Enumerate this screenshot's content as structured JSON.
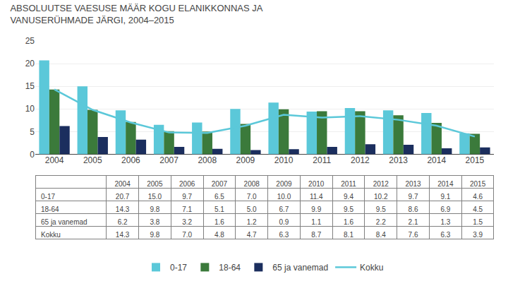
{
  "chart_data": {
    "type": "bar",
    "title": "ABSOLUUTSE VAESUSE MÄÄR KOGU ELANIKKONNAS JA\nVANUSERÜHMADE JÄRGI, 2004–2015",
    "categories": [
      "2004",
      "2005",
      "2006",
      "2007",
      "2008",
      "2009",
      "2010",
      "2011",
      "2012",
      "2013",
      "2014",
      "2015"
    ],
    "series": [
      {
        "name": "0-17",
        "type": "bar",
        "color": "#5BC8D9",
        "values": [
          20.7,
          15.0,
          9.7,
          6.5,
          7.0,
          10.0,
          11.4,
          9.4,
          10.2,
          9.7,
          9.1,
          4.6
        ],
        "value_labels": [
          "20.7",
          "15.0",
          "9.7",
          "6.5",
          "7.0",
          "10.0",
          "11.4",
          "9.4",
          "10.2",
          "9.7",
          "9.1",
          "4.6"
        ]
      },
      {
        "name": "18-64",
        "type": "bar",
        "color": "#3B7A3B",
        "values": [
          14.3,
          9.8,
          7.1,
          5.1,
          5.0,
          6.7,
          9.9,
          9.5,
          9.5,
          8.6,
          6.9,
          4.5
        ],
        "value_labels": [
          "14.3",
          "9.8",
          "7.1",
          "5.1",
          "5.0",
          "6.7",
          "9.9",
          "9.5",
          "9.5",
          "8.6",
          "6.9",
          "4.5"
        ]
      },
      {
        "name": "65 ja vanemad",
        "type": "bar",
        "color": "#1B2E5E",
        "values": [
          6.2,
          3.8,
          3.2,
          1.6,
          1.2,
          0.9,
          1.1,
          1.6,
          2.2,
          2.1,
          1.3,
          1.5
        ],
        "value_labels": [
          "6.2",
          "3.8",
          "3.2",
          "1.6",
          "1.2",
          "0.9",
          "1.1",
          "1.6",
          "2.2",
          "2.1",
          "1.3",
          "1.5"
        ]
      },
      {
        "name": "Kokku",
        "type": "line",
        "color": "#5BC8D9",
        "values": [
          14.3,
          9.8,
          7.0,
          4.8,
          4.7,
          6.3,
          8.7,
          8.1,
          8.4,
          7.6,
          6.3,
          3.9
        ],
        "value_labels": [
          "14.3",
          "9.8",
          "7.0",
          "4.8",
          "4.7",
          "6.3",
          "8.7",
          "8.1",
          "8.4",
          "7.6",
          "6.3",
          "3.9"
        ]
      }
    ],
    "ylim": [
      0,
      25
    ],
    "yticks": [
      0,
      5,
      10,
      15,
      20,
      25
    ],
    "grid": true,
    "legend": "bottom"
  }
}
